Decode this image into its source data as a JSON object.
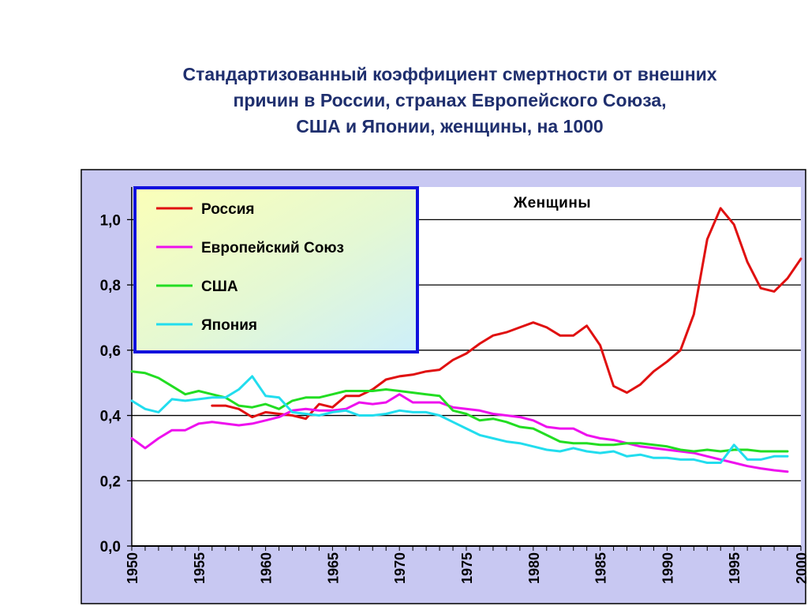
{
  "title_lines": [
    "Стандартизованный коэффициент смертности от внешних",
    "причин в России, странах Европейского Союза,",
    "США и Японии, женщины, на 1000"
  ],
  "chart_data": {
    "type": "line",
    "title": "Стандартизованный коэффициент смертности от внешних причин в России, странах Европейского Союза, США и Японии, женщины, на 1000",
    "annotation": "Женщины",
    "xlim": [
      1950,
      2000
    ],
    "ylim": [
      0,
      1.1
    ],
    "x_ticks": [
      "1950",
      "1955",
      "1960",
      "1965",
      "1970",
      "1975",
      "1980",
      "1985",
      "1990",
      "1995",
      "2000"
    ],
    "y_ticks": [
      "0,0",
      "0,2",
      "0,4",
      "0,6",
      "0,8",
      "1,0"
    ],
    "grid": true,
    "legend_position": "top-left",
    "series": [
      {
        "name": "Россия",
        "color": "#e01010",
        "x": [
          1956,
          1957,
          1958,
          1959,
          1960,
          1961,
          1962,
          1963,
          1964,
          1965,
          1966,
          1967,
          1968,
          1969,
          1970,
          1971,
          1972,
          1973,
          1974,
          1975,
          1976,
          1977,
          1978,
          1979,
          1980,
          1981,
          1982,
          1983,
          1984,
          1985,
          1986,
          1987,
          1988,
          1989,
          1990,
          1991,
          1992,
          1993,
          1994,
          1995,
          1996,
          1997,
          1998,
          1999,
          2000
        ],
        "values": [
          0.43,
          0.43,
          0.42,
          0.395,
          0.41,
          0.405,
          0.4,
          0.39,
          0.435,
          0.425,
          0.46,
          0.46,
          0.48,
          0.51,
          0.52,
          0.525,
          0.535,
          0.54,
          0.57,
          0.59,
          0.62,
          0.645,
          0.655,
          0.67,
          0.685,
          0.67,
          0.645,
          0.645,
          0.675,
          0.615,
          0.49,
          0.47,
          0.495,
          0.535,
          0.565,
          0.6,
          0.71,
          0.94,
          1.035,
          0.985,
          0.87,
          0.79,
          0.78,
          0.82,
          0.88
        ]
      },
      {
        "name": "Европейский Союз",
        "color": "#ee10ee",
        "x": [
          1950,
          1951,
          1952,
          1953,
          1954,
          1955,
          1956,
          1957,
          1958,
          1959,
          1960,
          1961,
          1962,
          1963,
          1964,
          1965,
          1966,
          1967,
          1968,
          1969,
          1970,
          1971,
          1972,
          1973,
          1974,
          1975,
          1976,
          1977,
          1978,
          1979,
          1980,
          1981,
          1982,
          1983,
          1984,
          1985,
          1986,
          1987,
          1988,
          1989,
          1990,
          1991,
          1992,
          1993,
          1994,
          1995,
          1996,
          1997,
          1998,
          1999
        ],
        "values": [
          0.33,
          0.3,
          0.33,
          0.355,
          0.355,
          0.375,
          0.38,
          0.375,
          0.37,
          0.375,
          0.385,
          0.395,
          0.415,
          0.42,
          0.415,
          0.415,
          0.42,
          0.44,
          0.435,
          0.44,
          0.465,
          0.44,
          0.44,
          0.44,
          0.425,
          0.42,
          0.415,
          0.405,
          0.4,
          0.395,
          0.385,
          0.365,
          0.36,
          0.36,
          0.34,
          0.33,
          0.325,
          0.315,
          0.305,
          0.3,
          0.295,
          0.29,
          0.285,
          0.275,
          0.265,
          0.255,
          0.245,
          0.238,
          0.232,
          0.228
        ]
      },
      {
        "name": "США",
        "color": "#22dd22",
        "x": [
          1950,
          1951,
          1952,
          1953,
          1954,
          1955,
          1956,
          1957,
          1958,
          1959,
          1960,
          1961,
          1962,
          1963,
          1964,
          1965,
          1966,
          1967,
          1968,
          1969,
          1970,
          1971,
          1972,
          1973,
          1974,
          1975,
          1976,
          1977,
          1978,
          1979,
          1980,
          1981,
          1982,
          1983,
          1984,
          1985,
          1986,
          1987,
          1988,
          1989,
          1990,
          1991,
          1992,
          1993,
          1994,
          1995,
          1996,
          1997,
          1998,
          1999
        ],
        "values": [
          0.535,
          0.53,
          0.515,
          0.49,
          0.465,
          0.475,
          0.465,
          0.455,
          0.43,
          0.425,
          0.435,
          0.42,
          0.445,
          0.455,
          0.455,
          0.465,
          0.475,
          0.475,
          0.475,
          0.48,
          0.475,
          0.47,
          0.465,
          0.46,
          0.415,
          0.405,
          0.385,
          0.39,
          0.38,
          0.365,
          0.36,
          0.34,
          0.32,
          0.315,
          0.315,
          0.31,
          0.31,
          0.315,
          0.315,
          0.31,
          0.305,
          0.295,
          0.29,
          0.295,
          0.29,
          0.295,
          0.295,
          0.29,
          0.29,
          0.29
        ]
      },
      {
        "name": "Япония",
        "color": "#22ddee",
        "x": [
          1950,
          1951,
          1952,
          1953,
          1954,
          1955,
          1956,
          1957,
          1958,
          1959,
          1960,
          1961,
          1962,
          1963,
          1964,
          1965,
          1966,
          1967,
          1968,
          1969,
          1970,
          1971,
          1972,
          1973,
          1974,
          1975,
          1976,
          1977,
          1978,
          1979,
          1980,
          1981,
          1982,
          1983,
          1984,
          1985,
          1986,
          1987,
          1988,
          1989,
          1990,
          1991,
          1992,
          1993,
          1994,
          1995,
          1996,
          1997,
          1998,
          1999
        ],
        "values": [
          0.445,
          0.42,
          0.41,
          0.45,
          0.445,
          0.45,
          0.455,
          0.455,
          0.48,
          0.52,
          0.46,
          0.455,
          0.41,
          0.405,
          0.4,
          0.41,
          0.415,
          0.4,
          0.4,
          0.405,
          0.415,
          0.41,
          0.41,
          0.4,
          0.38,
          0.36,
          0.34,
          0.33,
          0.32,
          0.315,
          0.305,
          0.295,
          0.29,
          0.3,
          0.29,
          0.285,
          0.29,
          0.275,
          0.28,
          0.27,
          0.27,
          0.265,
          0.265,
          0.255,
          0.255,
          0.31,
          0.265,
          0.265,
          0.275,
          0.275
        ]
      }
    ]
  }
}
